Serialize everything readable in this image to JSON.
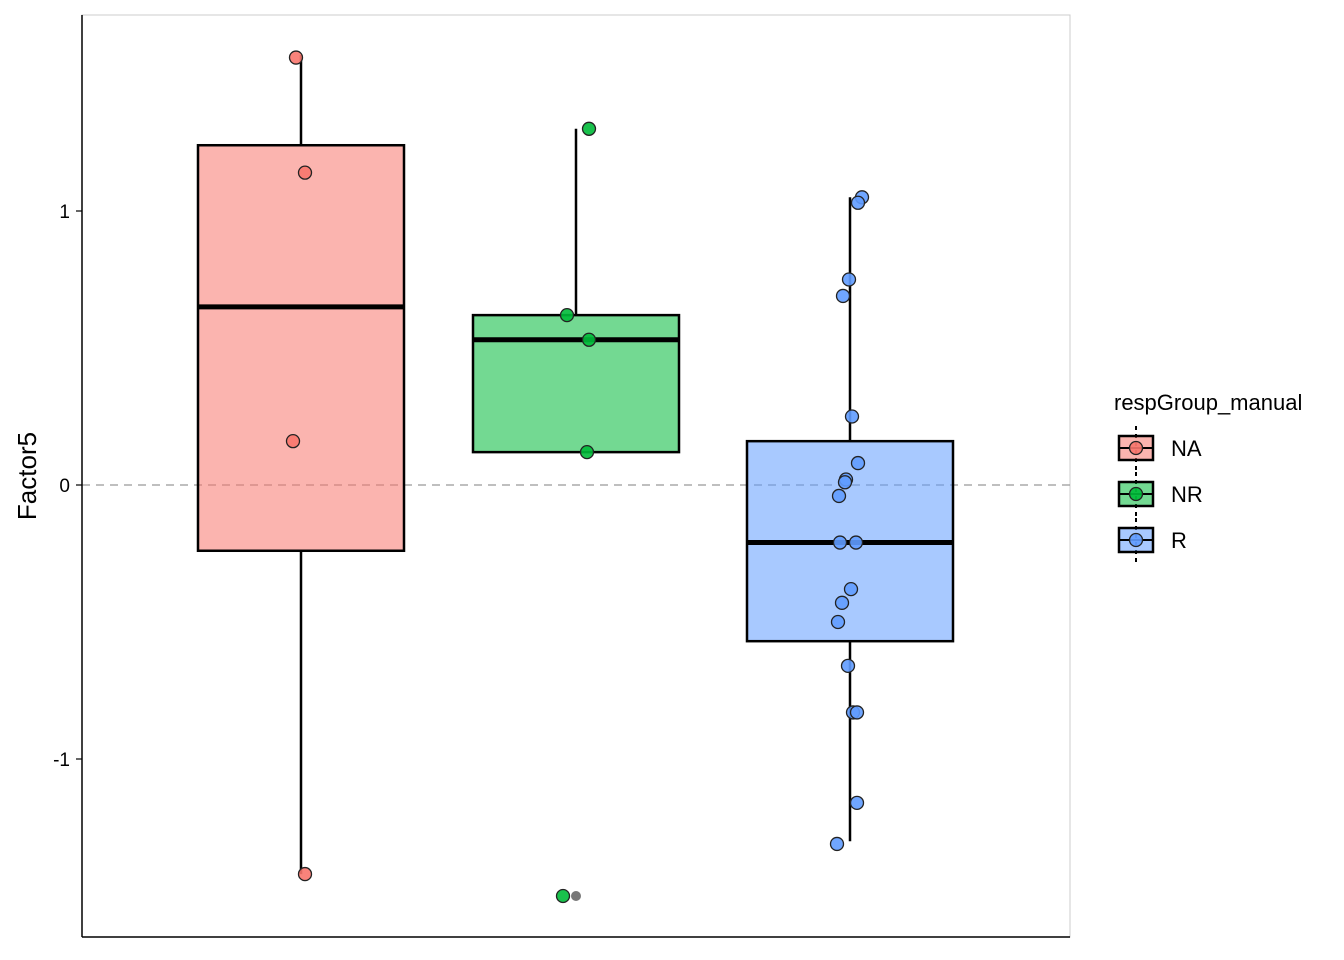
{
  "chart_data": {
    "type": "boxplot",
    "ylabel": "Factor5",
    "xlabel": "",
    "ylim": [
      -1.65,
      1.72
    ],
    "y_ticks": [
      -1,
      0,
      1
    ],
    "y_tick_labels": [
      "-1",
      "0",
      "1"
    ],
    "reference_line": {
      "y": 0,
      "style": "dashed",
      "color": "#999999"
    },
    "legend": {
      "title": "respGroup_manual",
      "placement": "right"
    },
    "groups": [
      {
        "name": "NA",
        "fill": "#F8766D",
        "box": {
          "lower_whisker": -1.42,
          "q1": -0.24,
          "median": 0.65,
          "q3": 1.24,
          "upper_whisker": 1.57
        },
        "points": [
          {
            "x_jitter": -0.05,
            "y": 1.56
          },
          {
            "x_jitter": 0.04,
            "y": 1.14
          },
          {
            "x_jitter": -0.08,
            "y": 0.16
          },
          {
            "x_jitter": 0.04,
            "y": -1.42
          }
        ],
        "outliers": []
      },
      {
        "name": "NR",
        "fill": "#00BA38",
        "box": {
          "lower_whisker": 0.12,
          "q1": 0.12,
          "median": 0.53,
          "q3": 0.62,
          "upper_whisker": 1.3
        },
        "points": [
          {
            "x_jitter": 0.13,
            "y": 1.3
          },
          {
            "x_jitter": -0.09,
            "y": 0.62
          },
          {
            "x_jitter": 0.13,
            "y": 0.53
          },
          {
            "x_jitter": 0.11,
            "y": 0.12
          },
          {
            "x_jitter": -0.13,
            "y": -1.5
          }
        ],
        "outliers": [
          {
            "y": -1.5
          }
        ]
      },
      {
        "name": "R",
        "fill": "#619CFF",
        "box": {
          "lower_whisker": -1.3,
          "q1": -0.57,
          "median": -0.21,
          "q3": 0.16,
          "upper_whisker": 1.05
        },
        "points": [
          {
            "x_jitter": 0.12,
            "y": 1.05
          },
          {
            "x_jitter": 0.08,
            "y": 1.03
          },
          {
            "x_jitter": -0.01,
            "y": 0.75
          },
          {
            "x_jitter": -0.07,
            "y": 0.69
          },
          {
            "x_jitter": 0.02,
            "y": 0.25
          },
          {
            "x_jitter": 0.08,
            "y": 0.08
          },
          {
            "x_jitter": -0.04,
            "y": 0.02
          },
          {
            "x_jitter": -0.05,
            "y": 0.01
          },
          {
            "x_jitter": -0.11,
            "y": -0.04
          },
          {
            "x_jitter": -0.1,
            "y": -0.21
          },
          {
            "x_jitter": 0.06,
            "y": -0.21
          },
          {
            "x_jitter": 0.01,
            "y": -0.38
          },
          {
            "x_jitter": -0.08,
            "y": -0.43
          },
          {
            "x_jitter": -0.12,
            "y": -0.5
          },
          {
            "x_jitter": -0.02,
            "y": -0.66
          },
          {
            "x_jitter": 0.03,
            "y": -0.83
          },
          {
            "x_jitter": 0.07,
            "y": -0.83
          },
          {
            "x_jitter": 0.07,
            "y": -1.16
          },
          {
            "x_jitter": -0.13,
            "y": -1.31
          }
        ],
        "outliers": []
      }
    ]
  }
}
